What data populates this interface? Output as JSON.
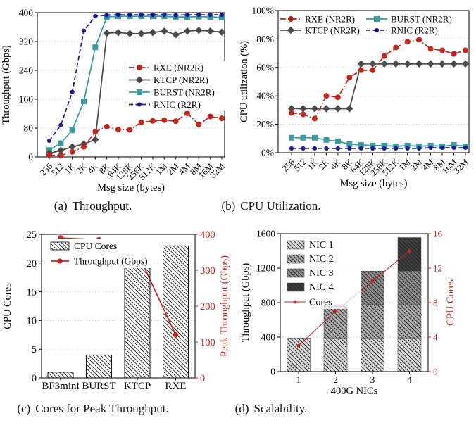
{
  "colors": {
    "rxe_red": "#c1271e",
    "ktcp_gray": "#4a4a4a",
    "burst_teal": "#3a9ba0",
    "rnic_navy": "#1a1b8c",
    "nic_grays": [
      "#d8d8d8",
      "#ababab",
      "#8c8c8c",
      "#3f3f3f"
    ],
    "grid": "#c9c9c9",
    "axis": "#000000"
  },
  "chart_data": [
    {
      "id": "a",
      "type": "line",
      "caption_label": "(a)",
      "caption_text": "Throughput.",
      "xlabel": "Msg size (bytes)",
      "ylabel": "Throughput (Gbps)",
      "ylim": [
        0,
        400
      ],
      "yticks": [
        0,
        80,
        160,
        240,
        320,
        400
      ],
      "ytick_labels": [
        "0",
        "80",
        "160",
        "240",
        "320",
        "400"
      ],
      "categories": [
        "256",
        "512",
        "1K",
        "2K",
        "4K",
        "8K",
        "64K",
        "128K",
        "256K",
        "512K",
        "1M",
        "2M",
        "4M",
        "8M",
        "16M",
        "32M"
      ],
      "grid": "dotted-horizontal",
      "legend_position": "middle-right",
      "series": [
        {
          "name": "RXE (NR2R)",
          "color": "#c1271e",
          "line": "dashdot",
          "marker": "circle",
          "values": [
            5,
            4,
            14,
            28,
            70,
            84,
            76,
            75,
            96,
            100,
            102,
            99,
            121,
            90,
            112,
            107
          ]
        },
        {
          "name": "KTCP (NR2R)",
          "color": "#4a4a4a",
          "line": "solid",
          "marker": "diamond",
          "values": [
            10,
            18,
            28,
            36,
            48,
            343,
            345,
            342,
            342,
            345,
            349,
            339,
            349,
            351,
            349,
            346
          ]
        },
        {
          "name": "BURST (NR2R)",
          "color": "#3a9ba0",
          "line": "solid",
          "marker": "square",
          "values": [
            19,
            38,
            74,
            154,
            304,
            388,
            390,
            390,
            390,
            390,
            390,
            388,
            388,
            389,
            388,
            387
          ]
        },
        {
          "name": "RNIC (R2R)",
          "color": "#1a1b8c",
          "line": "dashed",
          "marker": "circle-small",
          "values": [
            45,
            88,
            180,
            350,
            390,
            393,
            394,
            394,
            394,
            394,
            394,
            393,
            394,
            394,
            394,
            394
          ]
        }
      ]
    },
    {
      "id": "b",
      "type": "line",
      "caption_label": "(b)",
      "caption_text": "CPU Utilization.",
      "xlabel": "Msg size (bytes)",
      "ylabel": "CPU utilization (%)",
      "ylim": [
        0,
        100
      ],
      "yticks": [
        0,
        20,
        40,
        60,
        80,
        100
      ],
      "ytick_labels": [
        "0%",
        "20%",
        "40%",
        "60%",
        "80%",
        "100%"
      ],
      "categories": [
        "256",
        "512",
        "1K",
        "2K",
        "4K",
        "8K",
        "64K",
        "128K",
        "256K",
        "512K",
        "1M",
        "2M",
        "4M",
        "8M",
        "16M",
        "32M"
      ],
      "grid": "dotted-horizontal",
      "legend_position": "top-two-column",
      "series": [
        {
          "name": "RXE (NR2R)",
          "color": "#c1271e",
          "line": "dashdot",
          "marker": "circle",
          "values": [
            28,
            27,
            24,
            40,
            39,
            53,
            58,
            58,
            68,
            74,
            78,
            79.5,
            73,
            72,
            69.5,
            72
          ]
        },
        {
          "name": "KTCP (NR2R)",
          "color": "#4a4a4a",
          "line": "solid",
          "marker": "diamond",
          "values": [
            31,
            31,
            31,
            31,
            31,
            31,
            62.5,
            62.5,
            62.5,
            62.5,
            62.5,
            62.5,
            62.5,
            62.5,
            62.5,
            62.5
          ]
        },
        {
          "name": "BURST (NR2R)",
          "color": "#3a9ba0",
          "line": "solid",
          "marker": "square",
          "values": [
            10.5,
            10.5,
            10.5,
            9,
            8,
            6,
            5.5,
            5,
            5,
            4.5,
            5,
            4.5,
            5,
            4.5,
            5.5,
            4.5
          ]
        },
        {
          "name": "RNIC (R2R)",
          "color": "#1a1b8c",
          "line": "dashed",
          "marker": "circle-small",
          "values": [
            3,
            3,
            3,
            3,
            3,
            3,
            3,
            3,
            3,
            3,
            3,
            3,
            3.5,
            3.5,
            3.5,
            3.5
          ]
        }
      ]
    },
    {
      "id": "c",
      "type": "bar+line",
      "caption_label": "(c)",
      "caption_text": "Cores for Peak Throughput.",
      "categories": [
        "BF3mini",
        "BURST",
        "KTCP",
        "RXE"
      ],
      "ylabel_left": "CPU Cores",
      "ylim_left": [
        0,
        25
      ],
      "yticks_left": [
        0,
        5,
        10,
        15,
        20,
        25
      ],
      "ylabel_right": "Peak Throughput (Gbps)",
      "ylim_right": [
        0,
        400
      ],
      "yticks_right": [
        0,
        100,
        200,
        300,
        400
      ],
      "legend_position": "top-left",
      "bars": {
        "name": "CPU Cores",
        "style": "white-hatched",
        "values": [
          1,
          4,
          20,
          23
        ]
      },
      "line": {
        "name": "Throughput (Gbps)",
        "color": "#c1271e",
        "marker": "circle",
        "values": [
          390,
          385,
          350,
          120
        ]
      }
    },
    {
      "id": "d",
      "type": "stacked-bar+line",
      "caption_label": "(d)",
      "caption_text": "Scalability.",
      "xlabel": "400G NICs",
      "categories": [
        "1",
        "2",
        "3",
        "4"
      ],
      "ylabel_left": "Throughput (Gbps)",
      "ylim_left": [
        0,
        1600
      ],
      "yticks_left": [
        0,
        400,
        800,
        1200,
        1600
      ],
      "ylabel_right": "CPU Cores",
      "ylim_right": [
        0,
        16
      ],
      "yticks_right": [
        0,
        4,
        8,
        12,
        16
      ],
      "legend_position": "top-left",
      "series": [
        {
          "name": "NIC 1",
          "color": "#d8d8d8",
          "values": [
            390,
            390,
            390,
            390
          ]
        },
        {
          "name": "NIC 2",
          "color": "#ababab",
          "values": [
            0,
            385,
            390,
            385
          ]
        },
        {
          "name": "NIC 3",
          "color": "#8c8c8c",
          "values": [
            0,
            0,
            385,
            390
          ]
        },
        {
          "name": "NIC 4",
          "color": "#3f3f3f",
          "values": [
            0,
            0,
            0,
            390
          ]
        }
      ],
      "line": {
        "name": "Cores",
        "color": "#c1271e",
        "marker": "dot",
        "values": [
          3,
          7,
          10.5,
          14
        ]
      }
    }
  ]
}
